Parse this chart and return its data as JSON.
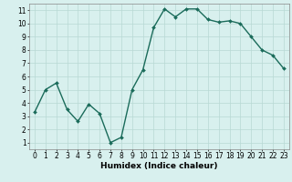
{
  "x": [
    0,
    1,
    2,
    3,
    4,
    5,
    6,
    7,
    8,
    9,
    10,
    11,
    12,
    13,
    14,
    15,
    16,
    17,
    18,
    19,
    20,
    21,
    22,
    23
  ],
  "y": [
    3.3,
    5.0,
    5.5,
    3.5,
    2.6,
    3.9,
    3.2,
    1.0,
    1.4,
    5.0,
    6.5,
    9.7,
    11.1,
    10.5,
    11.1,
    11.1,
    10.3,
    10.1,
    10.2,
    10.0,
    9.0,
    8.0,
    7.6,
    6.6
  ],
  "line_color": "#1a6b5a",
  "marker": "D",
  "markersize": 2,
  "linewidth": 1.0,
  "xlabel": "Humidex (Indice chaleur)",
  "xlim": [
    -0.5,
    23.5
  ],
  "ylim": [
    0.5,
    11.5
  ],
  "yticks": [
    1,
    2,
    3,
    4,
    5,
    6,
    7,
    8,
    9,
    10,
    11
  ],
  "xticks": [
    0,
    1,
    2,
    3,
    4,
    5,
    6,
    7,
    8,
    9,
    10,
    11,
    12,
    13,
    14,
    15,
    16,
    17,
    18,
    19,
    20,
    21,
    22,
    23
  ],
  "background_color": "#d8f0ee",
  "grid_color": "#b8d8d4",
  "xlabel_fontsize": 6.5,
  "tick_fontsize": 5.5
}
